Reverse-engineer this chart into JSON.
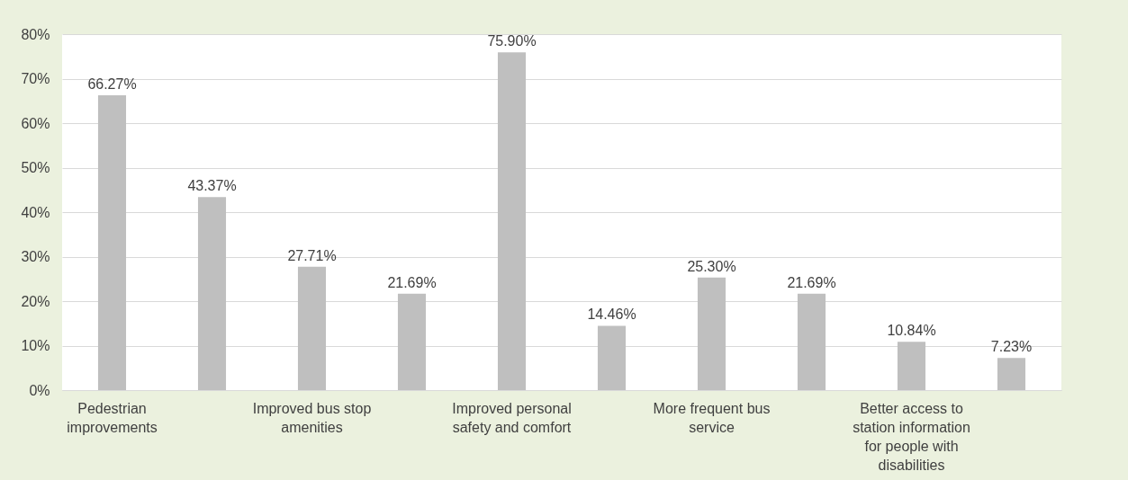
{
  "chart_data": {
    "type": "bar",
    "categories": [
      "Pedestrian improvements",
      null,
      "Improved bus stop amenities",
      null,
      "Improved personal safety and comfort",
      null,
      "More frequent bus service",
      null,
      "Better access to station information for people with disabilities",
      null
    ],
    "values": [
      66.27,
      43.37,
      27.71,
      21.69,
      75.9,
      14.46,
      25.3,
      21.69,
      10.84,
      7.23
    ],
    "value_labels": [
      "66.27%",
      "43.37%",
      "27.71%",
      "21.69%",
      "75.90%",
      "14.46%",
      "25.30%",
      "21.69%",
      "10.84%",
      "7.23%"
    ],
    "color": "#bfbfbf",
    "ylim": [
      0,
      80
    ],
    "yticks": [
      {
        "value": 0,
        "label": "0%"
      },
      {
        "value": 10,
        "label": "10%"
      },
      {
        "value": 20,
        "label": "20%"
      },
      {
        "value": 30,
        "label": "30%"
      },
      {
        "value": 40,
        "label": "40%"
      },
      {
        "value": 50,
        "label": "50%"
      },
      {
        "value": 60,
        "label": "60%"
      },
      {
        "value": 70,
        "label": "70%"
      },
      {
        "value": 80,
        "label": "80%"
      }
    ],
    "grid": "y"
  }
}
